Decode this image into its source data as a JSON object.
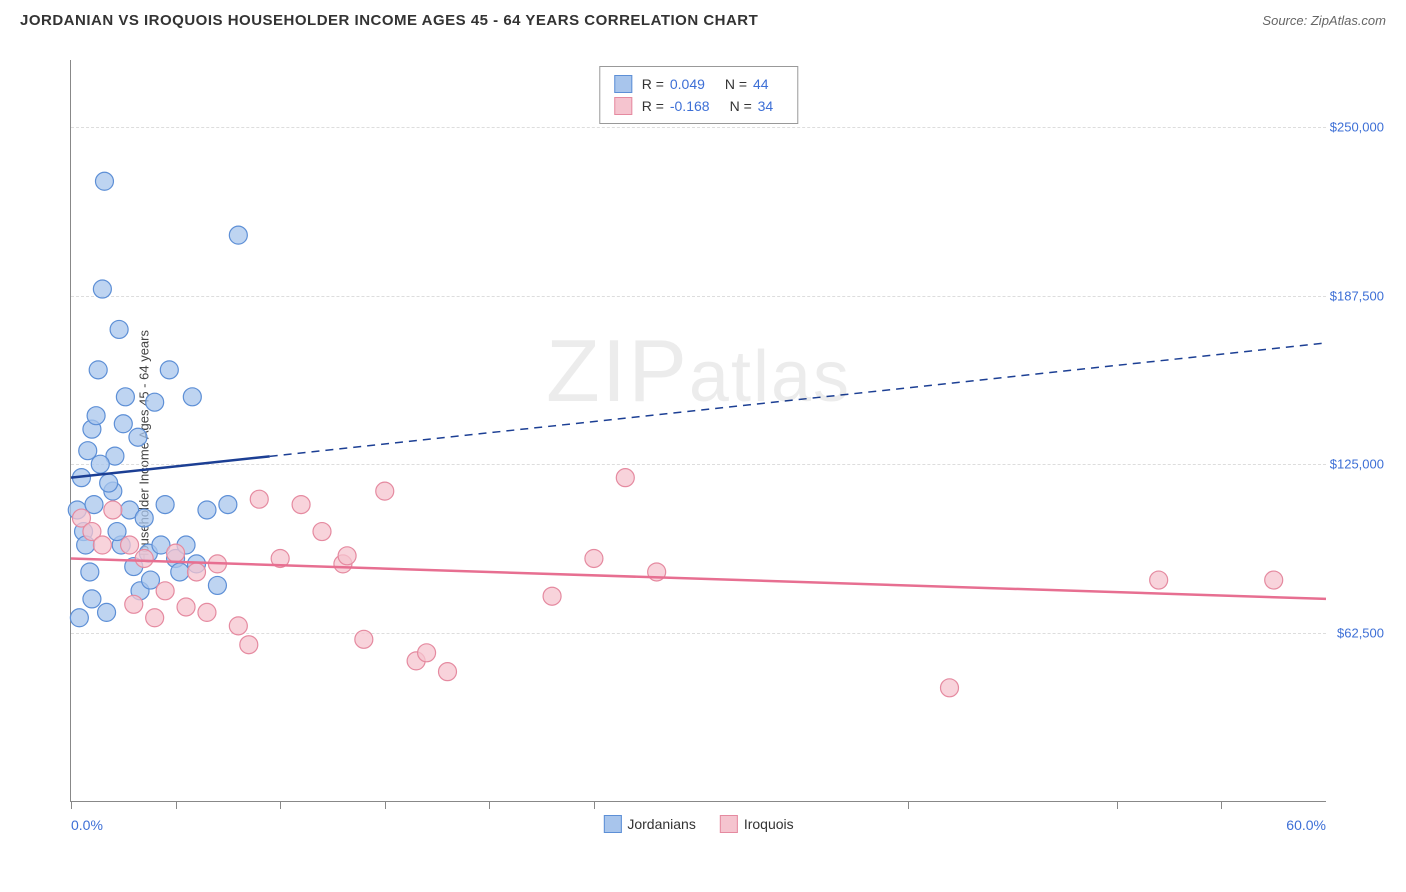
{
  "header": {
    "title": "JORDANIAN VS IROQUOIS HOUSEHOLDER INCOME AGES 45 - 64 YEARS CORRELATION CHART",
    "source_label": "Source:",
    "source_value": "ZipAtlas.com"
  },
  "watermark": {
    "prefix": "ZIP",
    "suffix": "atlas"
  },
  "chart": {
    "type": "scatter",
    "background_color": "#ffffff",
    "grid_color": "#dddddd",
    "axis_color": "#888888",
    "yaxis_title": "Householder Income Ages 45 - 64 years",
    "x": {
      "min_pct": 0.0,
      "max_pct": 60.0,
      "min_label": "0.0%",
      "max_label": "60.0%",
      "tick_positions_pct": [
        0.0,
        5.0,
        10.0,
        15.0,
        20.0,
        25.0,
        40.0,
        50.0,
        55.0
      ]
    },
    "y": {
      "min": 0,
      "max": 275000,
      "gridlines": [
        62500,
        125000,
        187500,
        250000
      ],
      "labels": [
        "$62,500",
        "$125,000",
        "$187,500",
        "$250,000"
      ],
      "label_color": "#3d6fd6"
    },
    "series": [
      {
        "name": "Jordanians",
        "marker_fill": "#a8c5ec",
        "marker_stroke": "#5d8fd6",
        "marker_radius": 9,
        "marker_opacity": 0.75,
        "line_color": "#1c3f94",
        "line_width": 2.5,
        "regression": {
          "solid_end_x": 9.5,
          "y_at_xmin": 120000,
          "y_at_xmax": 170000
        },
        "stats": {
          "R": "0.049",
          "N": "44"
        },
        "points": [
          {
            "x": 0.3,
            "y": 108000
          },
          {
            "x": 0.5,
            "y": 120000
          },
          {
            "x": 0.6,
            "y": 100000
          },
          {
            "x": 0.8,
            "y": 130000
          },
          {
            "x": 1.0,
            "y": 138000
          },
          {
            "x": 1.2,
            "y": 143000
          },
          {
            "x": 1.3,
            "y": 160000
          },
          {
            "x": 1.5,
            "y": 190000
          },
          {
            "x": 1.6,
            "y": 230000
          },
          {
            "x": 1.7,
            "y": 70000
          },
          {
            "x": 2.0,
            "y": 115000
          },
          {
            "x": 2.1,
            "y": 128000
          },
          {
            "x": 2.3,
            "y": 175000
          },
          {
            "x": 2.4,
            "y": 95000
          },
          {
            "x": 2.5,
            "y": 140000
          },
          {
            "x": 2.6,
            "y": 150000
          },
          {
            "x": 2.8,
            "y": 108000
          },
          {
            "x": 3.0,
            "y": 87000
          },
          {
            "x": 3.2,
            "y": 135000
          },
          {
            "x": 3.3,
            "y": 78000
          },
          {
            "x": 3.5,
            "y": 105000
          },
          {
            "x": 3.7,
            "y": 92000
          },
          {
            "x": 3.8,
            "y": 82000
          },
          {
            "x": 4.0,
            "y": 148000
          },
          {
            "x": 4.3,
            "y": 95000
          },
          {
            "x": 4.5,
            "y": 110000
          },
          {
            "x": 4.7,
            "y": 160000
          },
          {
            "x": 5.0,
            "y": 90000
          },
          {
            "x": 5.2,
            "y": 85000
          },
          {
            "x": 5.5,
            "y": 95000
          },
          {
            "x": 5.8,
            "y": 150000
          },
          {
            "x": 6.0,
            "y": 88000
          },
          {
            "x": 6.5,
            "y": 108000
          },
          {
            "x": 7.0,
            "y": 80000
          },
          {
            "x": 7.5,
            "y": 110000
          },
          {
            "x": 8.0,
            "y": 210000
          },
          {
            "x": 0.4,
            "y": 68000
          },
          {
            "x": 1.0,
            "y": 75000
          },
          {
            "x": 1.8,
            "y": 118000
          },
          {
            "x": 2.2,
            "y": 100000
          },
          {
            "x": 0.7,
            "y": 95000
          },
          {
            "x": 1.1,
            "y": 110000
          },
          {
            "x": 1.4,
            "y": 125000
          },
          {
            "x": 0.9,
            "y": 85000
          }
        ]
      },
      {
        "name": "Iroquois",
        "marker_fill": "#f5c4cf",
        "marker_stroke": "#e58aa0",
        "marker_radius": 9,
        "marker_opacity": 0.75,
        "line_color": "#e76f91",
        "line_width": 2.5,
        "regression": {
          "solid_end_x": 60.0,
          "y_at_xmin": 90000,
          "y_at_xmax": 75000
        },
        "stats": {
          "R": "-0.168",
          "N": "34"
        },
        "points": [
          {
            "x": 0.5,
            "y": 105000
          },
          {
            "x": 1.0,
            "y": 100000
          },
          {
            "x": 1.5,
            "y": 95000
          },
          {
            "x": 2.0,
            "y": 108000
          },
          {
            "x": 2.8,
            "y": 95000
          },
          {
            "x": 3.0,
            "y": 73000
          },
          {
            "x": 3.5,
            "y": 90000
          },
          {
            "x": 4.0,
            "y": 68000
          },
          {
            "x": 4.5,
            "y": 78000
          },
          {
            "x": 5.0,
            "y": 92000
          },
          {
            "x": 5.5,
            "y": 72000
          },
          {
            "x": 6.0,
            "y": 85000
          },
          {
            "x": 6.5,
            "y": 70000
          },
          {
            "x": 7.0,
            "y": 88000
          },
          {
            "x": 8.0,
            "y": 65000
          },
          {
            "x": 8.5,
            "y": 58000
          },
          {
            "x": 9.0,
            "y": 112000
          },
          {
            "x": 10.0,
            "y": 90000
          },
          {
            "x": 11.0,
            "y": 110000
          },
          {
            "x": 12.0,
            "y": 100000
          },
          {
            "x": 13.0,
            "y": 88000
          },
          {
            "x": 13.2,
            "y": 91000
          },
          {
            "x": 14.0,
            "y": 60000
          },
          {
            "x": 15.0,
            "y": 115000
          },
          {
            "x": 16.5,
            "y": 52000
          },
          {
            "x": 17.0,
            "y": 55000
          },
          {
            "x": 18.0,
            "y": 48000
          },
          {
            "x": 23.0,
            "y": 76000
          },
          {
            "x": 25.0,
            "y": 90000
          },
          {
            "x": 26.5,
            "y": 120000
          },
          {
            "x": 28.0,
            "y": 85000
          },
          {
            "x": 42.0,
            "y": 42000
          },
          {
            "x": 52.0,
            "y": 82000
          },
          {
            "x": 57.5,
            "y": 82000
          }
        ]
      }
    ],
    "legend_top_label_R": "R =",
    "legend_top_label_N": "N =",
    "legend_bottom": [
      {
        "label": "Jordanians"
      },
      {
        "label": "Iroquois"
      }
    ]
  }
}
